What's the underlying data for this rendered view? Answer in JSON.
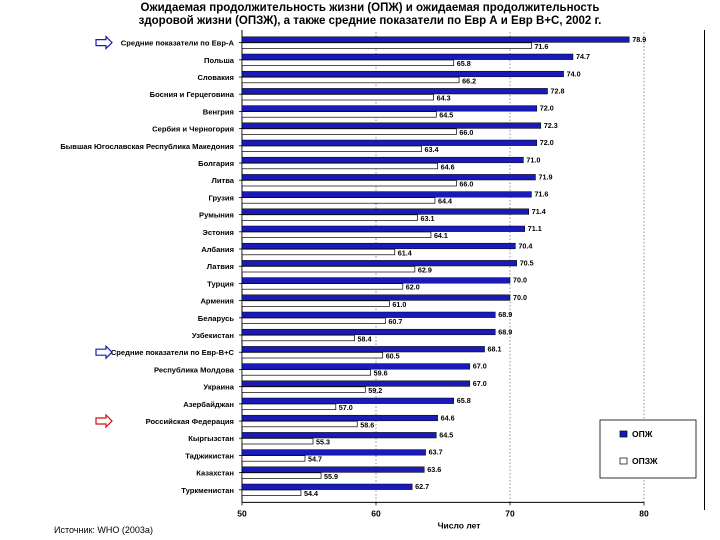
{
  "chart_data": {
    "type": "bar",
    "orientation": "horizontal",
    "title": [
      "Ожидаемая продолжительность жизни (ОПЖ) и ожидаемая продолжительность",
      "здоровой жизни (ОПЗЖ), а также средние показатели по Евр А и Евр В+С, 2002 г."
    ],
    "xlabel": "Число лет",
    "xlim": [
      50,
      80
    ],
    "xticks": [
      50,
      60,
      70,
      80
    ],
    "categories": [
      "Средние показатели по Евр-А",
      "Польша",
      "Словакия",
      "Босния и Герцеговина",
      "Венгрия",
      "Сербия и Черногория",
      "Бывшая Югославская Республика Македония",
      "Болгария",
      "Литва",
      "Грузия",
      "Румыния",
      "Эстония",
      "Албания",
      "Латвия",
      "Турция",
      "Армения",
      "Беларусь",
      "Узбекистан",
      "Средние показатели по Евр-В+С",
      "Республика Молдова",
      "Украина",
      "Азербайджан",
      "Российская Федерация",
      "Кыргызстан",
      "Таджикистан",
      "Казахстан",
      "Туркменистан"
    ],
    "series": [
      {
        "name": "ОПЖ",
        "color": "#1a1ab8",
        "labels": [
          "78.9",
          "74.7",
          "74.0",
          "72.8",
          "72.0",
          "72.3",
          "72.0",
          "71.0",
          "71.9",
          "71.6",
          "71.4",
          "71.1",
          "70.4",
          "70.5",
          "70.0",
          "70.0",
          "68.9",
          "68.9",
          "68.1",
          "67.0",
          "67.0",
          "65.8",
          "64.6",
          "64.5",
          "63.7",
          "63.6",
          "62.7"
        ],
        "values": [
          78.9,
          74.7,
          74.0,
          72.8,
          72.0,
          72.3,
          72.0,
          71.0,
          71.9,
          71.6,
          71.4,
          71.1,
          70.4,
          70.5,
          70.0,
          70.0,
          68.9,
          68.9,
          68.1,
          67.0,
          67.0,
          65.8,
          64.6,
          64.5,
          63.7,
          63.6,
          62.7
        ]
      },
      {
        "name": "ОПЗЖ",
        "color": "#ffffff",
        "labels": [
          "71.6",
          "65.8",
          "66.2",
          "64.3",
          "64.5",
          "66.0",
          "63.4",
          "64.6",
          "66.0",
          "64.4",
          "63.1",
          "64.1",
          "61.4",
          "62.9",
          "62.0",
          "61.0",
          "60.7",
          "58.4",
          "60.5",
          "59.6",
          "59.2",
          "57.0",
          "58.6",
          "55.3",
          "54.7",
          "55.9",
          "54.4"
        ],
        "values": [
          71.6,
          65.8,
          66.2,
          64.3,
          64.5,
          66.0,
          63.4,
          64.6,
          66.0,
          64.4,
          63.1,
          64.1,
          61.4,
          62.9,
          62.0,
          61.0,
          60.7,
          58.4,
          60.5,
          59.6,
          59.2,
          57.0,
          58.6,
          55.3,
          54.7,
          55.9,
          54.4
        ]
      }
    ],
    "highlighted_categories": [
      "Средние показатели по Евр-А",
      "Средние показатели по Евр-В+С",
      "Российская Федерация"
    ],
    "legend": [
      "ОПЖ",
      "ОПЗЖ"
    ],
    "legend_position": "bottom-right",
    "source": "Источник: WHO (2003a)"
  },
  "colors": {
    "accent_arrow": "#1a1ab8",
    "russia_arrow": "#d01010"
  }
}
